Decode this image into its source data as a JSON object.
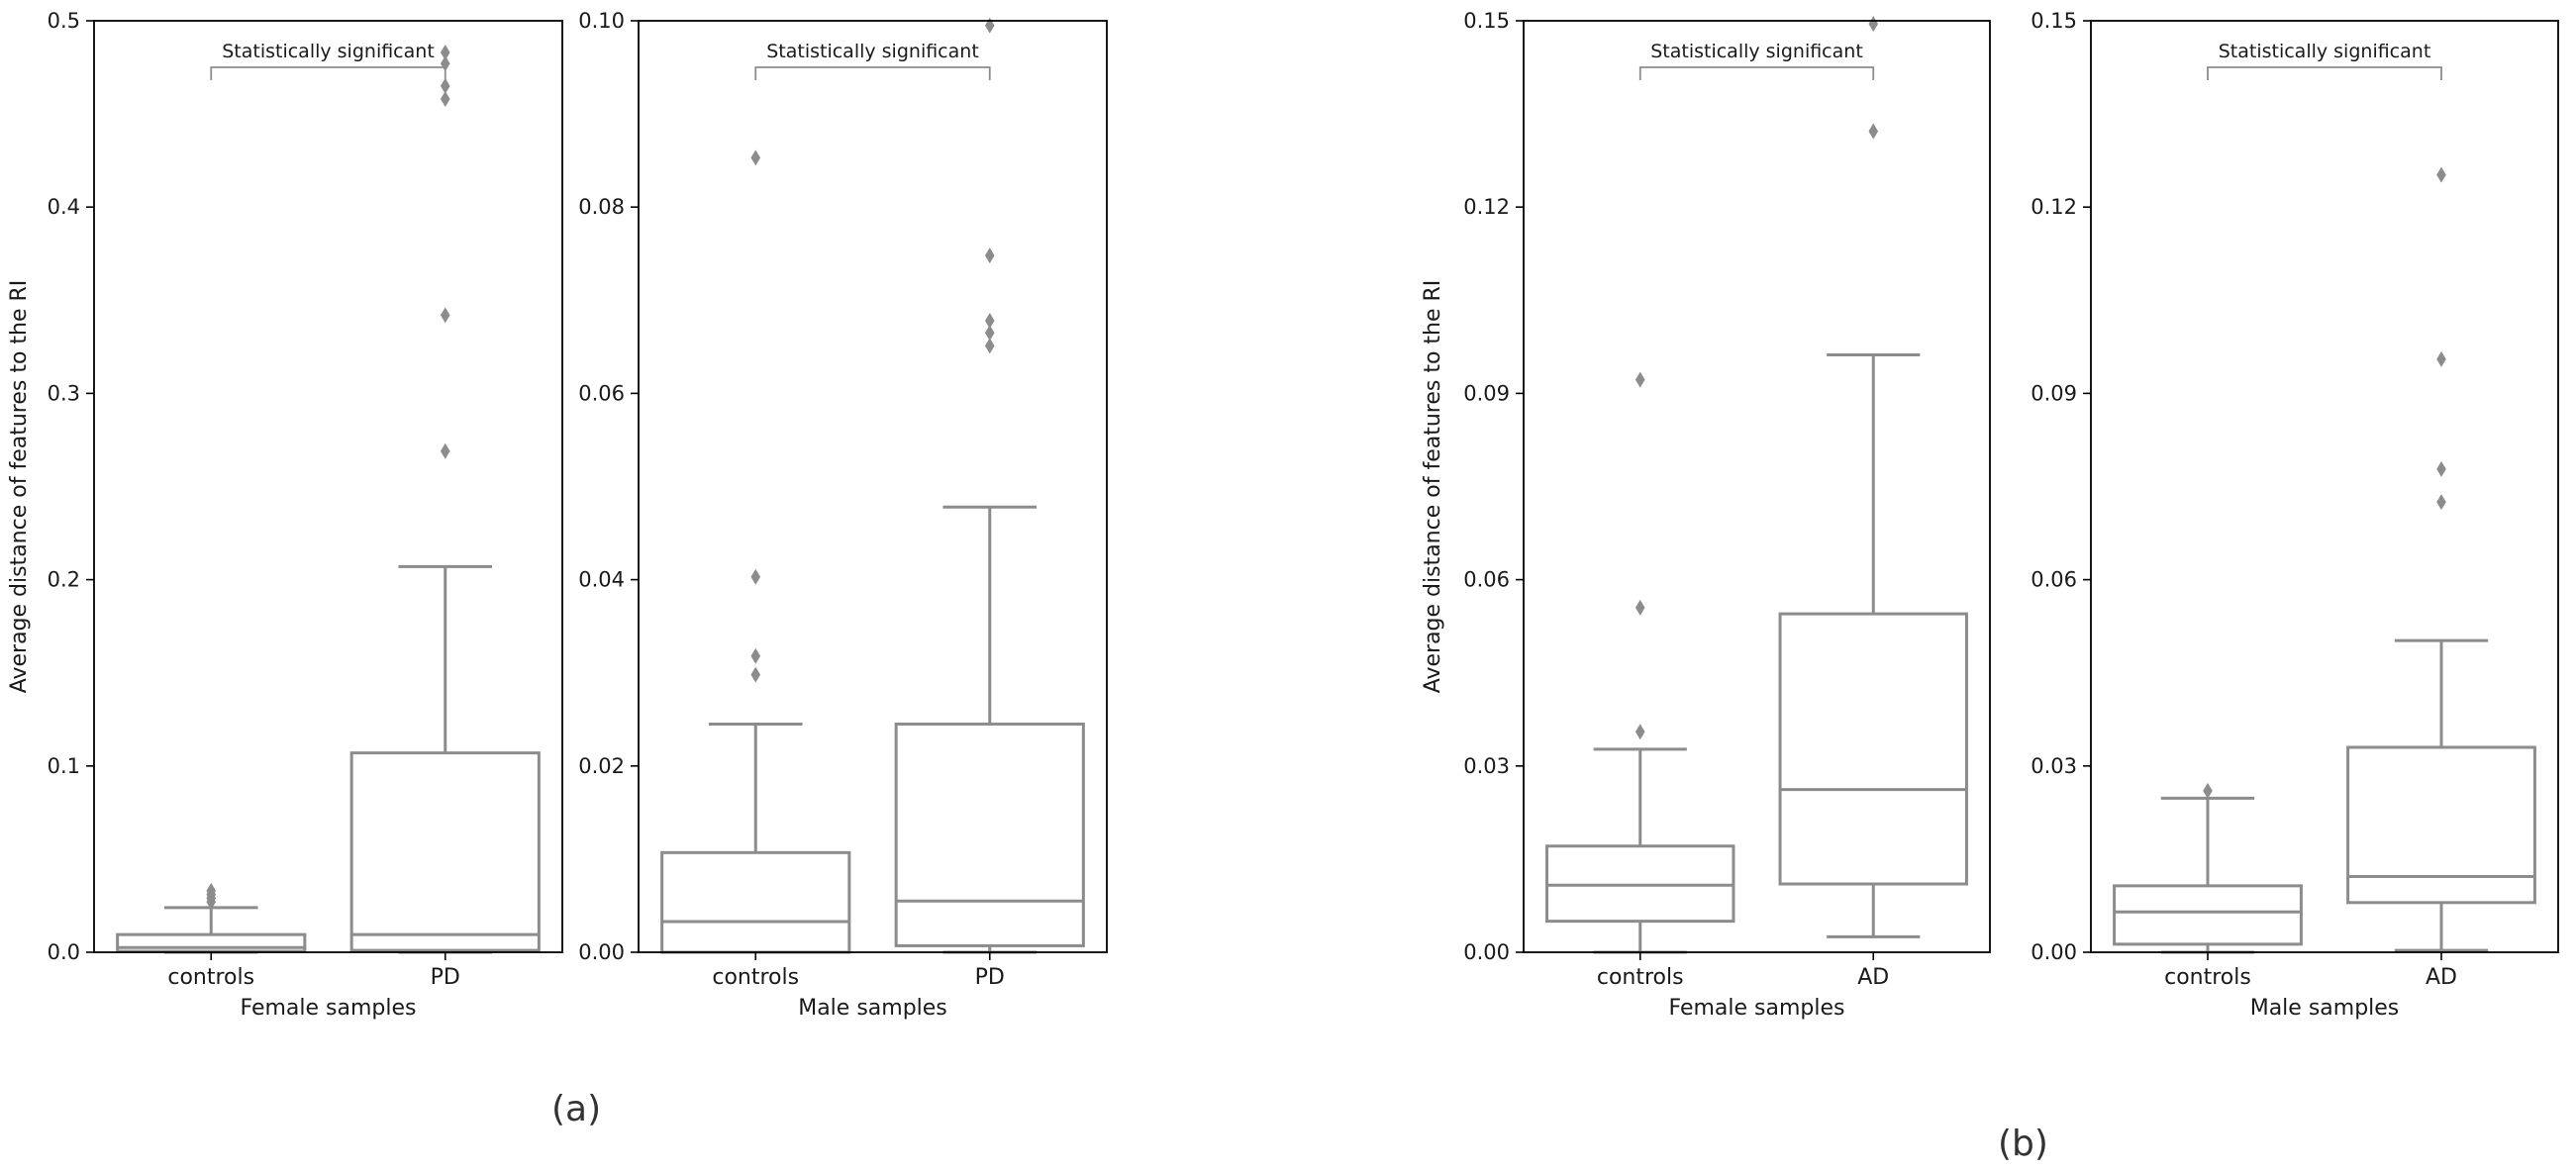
{
  "chart_data": [
    {
      "type": "box",
      "group": "(a)",
      "panel": "female-pd",
      "xlabel": "Female samples",
      "ylabel": "Average distance of features to the RI",
      "ylim": [
        0,
        0.5
      ],
      "yticks": [
        "0.0",
        "0.1",
        "0.2",
        "0.3",
        "0.4",
        "0.5"
      ],
      "categories": [
        "controls",
        "PD"
      ],
      "boxes": [
        {
          "whislo": 0.0,
          "q1": 0.0005,
          "med": 0.0025,
          "q3": 0.0095,
          "whishi": 0.024,
          "fliers": [
            0.027,
            0.029,
            0.031,
            0.033
          ]
        },
        {
          "whislo": 0.0,
          "q1": 0.001,
          "med": 0.0095,
          "q3": 0.107,
          "whishi": 0.207,
          "fliers": [
            0.269,
            0.342,
            0.458,
            0.465,
            0.477,
            0.483
          ]
        }
      ],
      "annotation": "Statistically significant"
    },
    {
      "type": "box",
      "group": "(a)",
      "panel": "male-pd",
      "xlabel": "Male samples",
      "ylabel": "",
      "ylim": [
        0,
        0.1
      ],
      "yticks": [
        "0.00",
        "0.02",
        "0.04",
        "0.06",
        "0.08",
        "0.10"
      ],
      "categories": [
        "controls",
        "PD"
      ],
      "boxes": [
        {
          "whislo": 0.0,
          "q1": 0.0,
          "med": 0.0033,
          "q3": 0.0107,
          "whishi": 0.0245,
          "fliers": [
            0.0298,
            0.0318,
            0.0403,
            0.0853
          ]
        },
        {
          "whislo": 0.0,
          "q1": 0.0007,
          "med": 0.0055,
          "q3": 0.0245,
          "whishi": 0.0478,
          "fliers": [
            0.0651,
            0.0665,
            0.0678,
            0.0748,
            0.0995
          ]
        }
      ],
      "annotation": "Statistically significant"
    },
    {
      "type": "box",
      "group": "(b)",
      "panel": "female-ad",
      "xlabel": "Female samples",
      "ylabel": "Average distance of features to the RI",
      "ylim": [
        0,
        0.15
      ],
      "yticks": [
        "0.00",
        "0.03",
        "0.06",
        "0.09",
        "0.12",
        "0.15"
      ],
      "categories": [
        "controls",
        "AD"
      ],
      "boxes": [
        {
          "whislo": 0.0,
          "q1": 0.005,
          "med": 0.0108,
          "q3": 0.0171,
          "whishi": 0.0327,
          "fliers": [
            0.0355,
            0.0555,
            0.0922
          ]
        },
        {
          "whislo": 0.0025,
          "q1": 0.011,
          "med": 0.0262,
          "q3": 0.0545,
          "whishi": 0.0962,
          "fliers": [
            0.1322,
            0.1495
          ]
        }
      ],
      "annotation": "Statistically significant"
    },
    {
      "type": "box",
      "group": "(b)",
      "panel": "male-ad",
      "xlabel": "Male samples",
      "ylabel": "",
      "ylim": [
        0,
        0.15
      ],
      "yticks": [
        "0.00",
        "0.03",
        "0.06",
        "0.09",
        "0.12",
        "0.15"
      ],
      "categories": [
        "controls",
        "AD"
      ],
      "boxes": [
        {
          "whislo": 0.0,
          "q1": 0.0013,
          "med": 0.0065,
          "q3": 0.0107,
          "whishi": 0.0248,
          "fliers": [
            0.026
          ]
        },
        {
          "whislo": 0.0003,
          "q1": 0.008,
          "med": 0.0122,
          "q3": 0.033,
          "whishi": 0.0502,
          "fliers": [
            0.0725,
            0.0778,
            0.0955,
            0.1252
          ]
        }
      ],
      "annotation": "Statistically significant"
    }
  ],
  "labels": {
    "a": "(a)",
    "b": "(b)"
  },
  "colors": {
    "box": "#8c8c8c",
    "axis": "#000000",
    "text": "#1a1a1a"
  }
}
